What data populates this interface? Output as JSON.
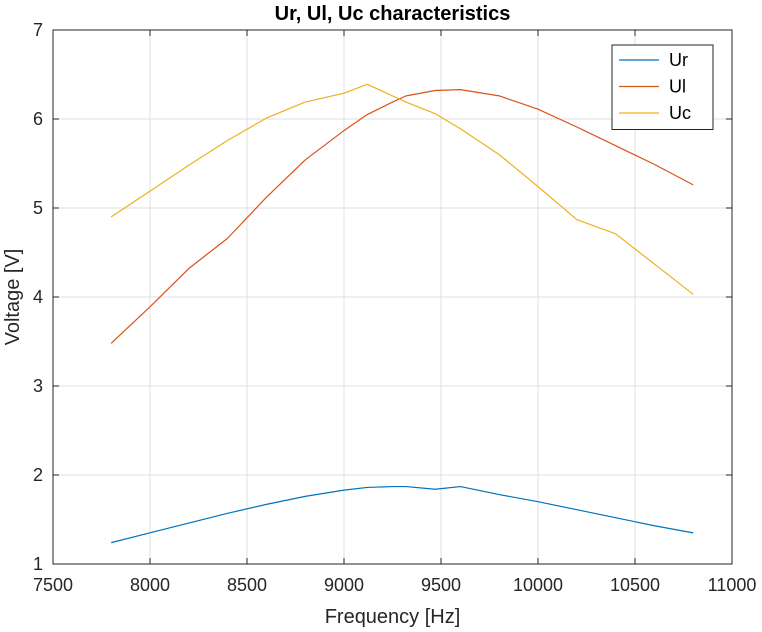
{
  "chart_data": {
    "type": "line",
    "title": "Ur, Ul, Uc characteristics",
    "xlabel": "Frequency [Hz]",
    "ylabel": "Voltage [V]",
    "xlim": [
      7500,
      11000
    ],
    "ylim": [
      1,
      7
    ],
    "xticks": [
      7500,
      8000,
      8500,
      9000,
      9500,
      10000,
      10500,
      11000
    ],
    "yticks": [
      1,
      2,
      3,
      4,
      5,
      6,
      7
    ],
    "grid": true,
    "legend_position": "top-right",
    "series": [
      {
        "name": "Ur",
        "color": "#0072BD",
        "x": [
          7800,
          8000,
          8200,
          8400,
          8600,
          8800,
          9000,
          9120,
          9250,
          9320,
          9470,
          9600,
          9800,
          10000,
          10200,
          10400,
          10600,
          10800
        ],
        "y": [
          1.24,
          1.35,
          1.46,
          1.57,
          1.67,
          1.76,
          1.83,
          1.86,
          1.87,
          1.87,
          1.84,
          1.87,
          1.78,
          1.7,
          1.61,
          1.52,
          1.43,
          1.35
        ]
      },
      {
        "name": "Ul",
        "color": "#D95319",
        "x": [
          7800,
          8000,
          8200,
          8400,
          8600,
          8800,
          9000,
          9120,
          9250,
          9320,
          9470,
          9600,
          9800,
          10000,
          10200,
          10400,
          10600,
          10800
        ],
        "y": [
          3.48,
          3.89,
          4.32,
          4.66,
          5.12,
          5.54,
          5.87,
          6.05,
          6.19,
          6.26,
          6.32,
          6.33,
          6.26,
          6.11,
          5.91,
          5.7,
          5.49,
          5.26
        ]
      },
      {
        "name": "Uc",
        "color": "#EDB120",
        "x": [
          7800,
          8000,
          8200,
          8400,
          8600,
          8800,
          9000,
          9120,
          9250,
          9320,
          9470,
          9600,
          9800,
          10000,
          10200,
          10400,
          10600,
          10800
        ],
        "y": [
          4.9,
          5.19,
          5.48,
          5.76,
          6.01,
          6.19,
          6.29,
          6.39,
          6.26,
          6.19,
          6.06,
          5.89,
          5.6,
          5.24,
          4.87,
          4.71,
          4.37,
          4.03
        ]
      }
    ]
  }
}
